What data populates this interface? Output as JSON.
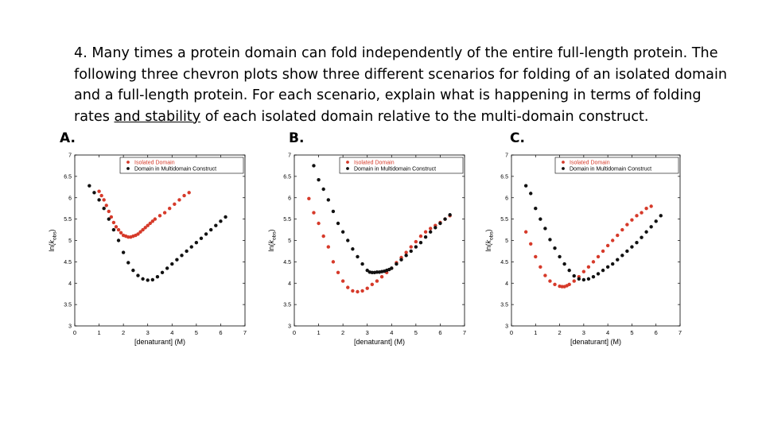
{
  "question": {
    "part1": "4. Many times a protein domain can fold independently of the entire full-length protein.  The following three chevron plots show three different scenarios for folding of an isolated domain and a full-length protein.  For each scenario, explain what is happening in terms of folding rates ",
    "underlined": "and stability",
    "part2": " of each isolated domain relative to the multi-domain construct."
  },
  "colors": {
    "isolated": "#d63a2a",
    "multi": "#111111"
  },
  "chart_data": [
    {
      "panel_label": "A.",
      "type": "scatter",
      "xlabel": "[denaturant] (M)",
      "ylabel": "ln(k_obs)",
      "xlim": [
        0,
        7
      ],
      "ylim": [
        3,
        7
      ],
      "x_ticks": [
        "0",
        "1",
        "2",
        "3",
        "4",
        "5",
        "6",
        "7"
      ],
      "y_ticks": [
        "3",
        "3.5",
        "4",
        "4.5",
        "5",
        "5.5",
        "6",
        "6.5",
        "7"
      ],
      "legend_position": "top-right",
      "series": [
        {
          "name": "Isolated Domain",
          "color_key": "isolated",
          "x": [
            1.0,
            1.1,
            1.2,
            1.3,
            1.4,
            1.5,
            1.6,
            1.7,
            1.8,
            1.9,
            2.0,
            2.1,
            2.2,
            2.3,
            2.4,
            2.5,
            2.6,
            2.7,
            2.8,
            2.9,
            3.0,
            3.1,
            3.2,
            3.3,
            3.5,
            3.7,
            3.9,
            4.1,
            4.3,
            4.5,
            4.7
          ],
          "y": [
            6.15,
            6.05,
            5.95,
            5.82,
            5.68,
            5.55,
            5.42,
            5.32,
            5.25,
            5.18,
            5.12,
            5.1,
            5.08,
            5.08,
            5.1,
            5.12,
            5.15,
            5.2,
            5.25,
            5.3,
            5.35,
            5.4,
            5.45,
            5.5,
            5.58,
            5.65,
            5.75,
            5.85,
            5.95,
            6.05,
            6.12
          ]
        },
        {
          "name": "Domain in Multidomain Construct",
          "color_key": "multi",
          "x": [
            0.6,
            0.8,
            1.0,
            1.2,
            1.4,
            1.6,
            1.8,
            2.0,
            2.2,
            2.4,
            2.6,
            2.8,
            3.0,
            3.2,
            3.4,
            3.6,
            3.8,
            4.0,
            4.2,
            4.4,
            4.6,
            4.8,
            5.0,
            5.2,
            5.4,
            5.6,
            5.8,
            6.0,
            6.2
          ],
          "y": [
            6.28,
            6.12,
            5.95,
            5.75,
            5.5,
            5.25,
            5.0,
            4.72,
            4.48,
            4.3,
            4.18,
            4.1,
            4.07,
            4.08,
            4.15,
            4.25,
            4.35,
            4.45,
            4.55,
            4.65,
            4.75,
            4.85,
            4.95,
            5.05,
            5.15,
            5.25,
            5.35,
            5.45,
            5.55
          ]
        }
      ]
    },
    {
      "panel_label": "B.",
      "type": "scatter",
      "xlabel": "[denaturant] (M)",
      "ylabel": "ln(k_obs)",
      "xlim": [
        0,
        7
      ],
      "ylim": [
        3,
        7
      ],
      "x_ticks": [
        "0",
        "1",
        "2",
        "3",
        "4",
        "5",
        "6",
        "7"
      ],
      "y_ticks": [
        "3",
        "3.5",
        "4",
        "4.5",
        "5",
        "5.5",
        "6",
        "6.5",
        "7"
      ],
      "legend_position": "top-right",
      "series": [
        {
          "name": "Isolated Domain",
          "color_key": "isolated",
          "x": [
            0.6,
            0.8,
            1.0,
            1.2,
            1.4,
            1.6,
            1.8,
            2.0,
            2.2,
            2.4,
            2.6,
            2.8,
            3.0,
            3.2,
            3.4,
            3.6,
            3.8,
            4.0,
            4.2,
            4.4,
            4.6,
            4.8,
            5.0,
            5.2,
            5.4,
            5.6,
            5.8,
            6.0,
            6.2,
            6.4
          ],
          "y": [
            5.98,
            5.65,
            5.4,
            5.1,
            4.85,
            4.5,
            4.25,
            4.05,
            3.9,
            3.82,
            3.8,
            3.82,
            3.88,
            3.97,
            4.05,
            4.15,
            4.25,
            4.35,
            4.48,
            4.6,
            4.72,
            4.85,
            4.97,
            5.1,
            5.2,
            5.28,
            5.35,
            5.42,
            5.5,
            5.58
          ]
        },
        {
          "name": "Domain in Multidomain Construct",
          "color_key": "multi",
          "x": [
            0.8,
            1.0,
            1.2,
            1.4,
            1.6,
            1.8,
            2.0,
            2.2,
            2.4,
            2.6,
            2.8,
            3.0,
            3.1,
            3.2,
            3.3,
            3.4,
            3.5,
            3.6,
            3.7,
            3.8,
            3.9,
            4.0,
            4.2,
            4.4,
            4.6,
            4.8,
            5.0,
            5.2,
            5.4,
            5.6,
            5.8,
            6.0,
            6.2,
            6.4
          ],
          "y": [
            6.75,
            6.42,
            6.2,
            5.95,
            5.68,
            5.4,
            5.2,
            5.0,
            4.8,
            4.62,
            4.45,
            4.3,
            4.26,
            4.25,
            4.25,
            4.26,
            4.26,
            4.27,
            4.28,
            4.3,
            4.32,
            4.35,
            4.45,
            4.55,
            4.65,
            4.75,
            4.85,
            4.95,
            5.08,
            5.2,
            5.3,
            5.4,
            5.5,
            5.6
          ]
        }
      ]
    },
    {
      "panel_label": "C.",
      "type": "scatter",
      "xlabel": "[denaturant] (M)",
      "ylabel": "ln(k_obs)",
      "xlim": [
        0,
        7
      ],
      "ylim": [
        3,
        7
      ],
      "x_ticks": [
        "0",
        "1",
        "2",
        "3",
        "4",
        "5",
        "6",
        "7"
      ],
      "y_ticks": [
        "3",
        "3.5",
        "4",
        "4.5",
        "5",
        "5.5",
        "6",
        "6.5",
        "7"
      ],
      "legend_position": "top-right",
      "series": [
        {
          "name": "Isolated Domain",
          "color_key": "isolated",
          "x": [
            0.6,
            0.8,
            1.0,
            1.2,
            1.4,
            1.6,
            1.8,
            2.0,
            2.1,
            2.2,
            2.3,
            2.4,
            2.6,
            2.8,
            3.0,
            3.2,
            3.4,
            3.6,
            3.8,
            4.0,
            4.2,
            4.4,
            4.6,
            4.8,
            5.0,
            5.2,
            5.4,
            5.6,
            5.8
          ],
          "y": [
            5.2,
            4.92,
            4.62,
            4.38,
            4.18,
            4.05,
            3.97,
            3.93,
            3.92,
            3.92,
            3.94,
            3.97,
            4.05,
            4.15,
            4.27,
            4.38,
            4.5,
            4.62,
            4.75,
            4.88,
            5.0,
            5.12,
            5.25,
            5.37,
            5.48,
            5.58,
            5.65,
            5.75,
            5.8
          ]
        },
        {
          "name": "Domain in Multidomain Construct",
          "color_key": "multi",
          "x": [
            0.6,
            0.8,
            1.0,
            1.2,
            1.4,
            1.6,
            1.8,
            2.0,
            2.2,
            2.4,
            2.6,
            2.8,
            3.0,
            3.2,
            3.4,
            3.6,
            3.8,
            4.0,
            4.2,
            4.4,
            4.6,
            4.8,
            5.0,
            5.2,
            5.4,
            5.6,
            5.8,
            6.0,
            6.2
          ],
          "y": [
            6.28,
            6.1,
            5.75,
            5.5,
            5.28,
            5.02,
            4.82,
            4.62,
            4.45,
            4.3,
            4.17,
            4.1,
            4.08,
            4.1,
            4.15,
            4.22,
            4.3,
            4.38,
            4.45,
            4.55,
            4.65,
            4.75,
            4.85,
            4.95,
            5.07,
            5.2,
            5.32,
            5.45,
            5.58
          ]
        }
      ]
    }
  ]
}
